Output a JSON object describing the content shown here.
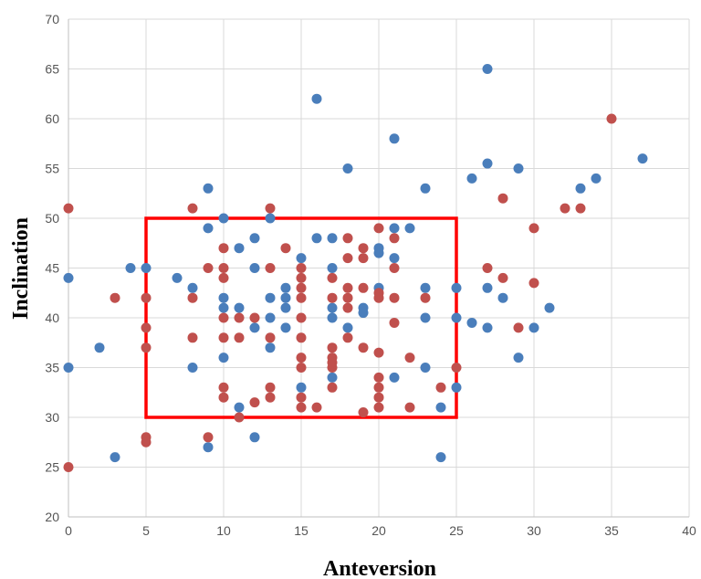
{
  "chart_data": {
    "type": "scatter",
    "title": "",
    "xlabel": "Anteversion",
    "ylabel": "Inclination",
    "xlim": [
      0,
      40
    ],
    "ylim": [
      20,
      70
    ],
    "xticks": [
      0,
      5,
      10,
      15,
      20,
      25,
      30,
      35,
      40
    ],
    "yticks": [
      20,
      25,
      30,
      35,
      40,
      45,
      50,
      55,
      60,
      65,
      70
    ],
    "grid": true,
    "legend": "none",
    "safe_zone": {
      "x": [
        5,
        25
      ],
      "y": [
        30,
        50
      ],
      "color": "#ff0000"
    },
    "series": [
      {
        "color": "#4a7ebb",
        "points": [
          [
            0,
            44
          ],
          [
            0,
            35
          ],
          [
            2,
            37
          ],
          [
            3,
            26
          ],
          [
            4,
            45
          ],
          [
            5,
            45
          ],
          [
            7,
            44
          ],
          [
            8,
            43
          ],
          [
            8,
            35
          ],
          [
            9,
            53
          ],
          [
            9,
            49
          ],
          [
            9,
            27
          ],
          [
            10,
            50
          ],
          [
            10,
            42
          ],
          [
            10,
            41
          ],
          [
            10,
            36
          ],
          [
            11,
            47
          ],
          [
            11,
            41
          ],
          [
            11,
            31
          ],
          [
            12,
            48
          ],
          [
            12,
            45
          ],
          [
            12,
            39
          ],
          [
            12,
            28
          ],
          [
            13,
            50
          ],
          [
            13,
            42
          ],
          [
            13,
            40
          ],
          [
            13,
            37
          ],
          [
            14,
            43
          ],
          [
            14,
            42
          ],
          [
            14,
            41
          ],
          [
            14,
            39
          ],
          [
            15,
            46
          ],
          [
            15,
            33
          ],
          [
            16,
            62
          ],
          [
            16,
            48
          ],
          [
            17,
            48
          ],
          [
            17,
            45
          ],
          [
            17,
            41
          ],
          [
            17,
            40
          ],
          [
            17,
            34
          ],
          [
            18,
            55
          ],
          [
            18,
            39
          ],
          [
            19,
            41
          ],
          [
            19,
            40.5
          ],
          [
            20,
            47
          ],
          [
            20,
            46.5
          ],
          [
            20,
            43
          ],
          [
            21,
            58
          ],
          [
            21,
            49
          ],
          [
            21,
            46
          ],
          [
            21,
            34
          ],
          [
            22,
            49
          ],
          [
            23,
            53
          ],
          [
            23,
            43
          ],
          [
            23,
            40
          ],
          [
            23,
            35
          ],
          [
            24,
            31
          ],
          [
            24,
            26
          ],
          [
            25,
            43
          ],
          [
            25,
            40
          ],
          [
            25,
            33
          ],
          [
            26,
            54
          ],
          [
            26,
            39.5
          ],
          [
            27,
            65
          ],
          [
            27,
            55.5
          ],
          [
            27,
            43
          ],
          [
            27,
            39
          ],
          [
            28,
            42
          ],
          [
            29,
            55
          ],
          [
            29,
            36
          ],
          [
            30,
            39
          ],
          [
            31,
            41
          ],
          [
            33,
            53
          ],
          [
            34,
            54
          ],
          [
            37,
            56
          ]
        ]
      },
      {
        "color": "#c0504d",
        "points": [
          [
            0,
            51
          ],
          [
            0,
            25
          ],
          [
            3,
            42
          ],
          [
            5,
            42
          ],
          [
            5,
            39
          ],
          [
            5,
            37
          ],
          [
            5,
            28
          ],
          [
            5,
            27.5
          ],
          [
            8,
            51
          ],
          [
            8,
            42
          ],
          [
            8,
            38
          ],
          [
            9,
            45
          ],
          [
            9,
            28
          ],
          [
            10,
            47
          ],
          [
            10,
            45
          ],
          [
            10,
            44
          ],
          [
            10,
            40
          ],
          [
            10,
            38
          ],
          [
            10,
            33
          ],
          [
            10,
            32
          ],
          [
            11,
            40
          ],
          [
            11,
            38
          ],
          [
            11,
            30
          ],
          [
            12,
            40
          ],
          [
            12,
            31.5
          ],
          [
            13,
            51
          ],
          [
            13,
            45
          ],
          [
            13,
            38
          ],
          [
            13,
            33
          ],
          [
            13,
            32
          ],
          [
            14,
            47
          ],
          [
            15,
            45
          ],
          [
            15,
            44
          ],
          [
            15,
            43
          ],
          [
            15,
            42
          ],
          [
            15,
            40
          ],
          [
            15,
            38
          ],
          [
            15,
            36
          ],
          [
            15,
            35
          ],
          [
            15,
            32
          ],
          [
            15,
            31
          ],
          [
            16,
            31
          ],
          [
            17,
            44
          ],
          [
            17,
            42
          ],
          [
            17,
            37
          ],
          [
            17,
            36
          ],
          [
            17,
            35.5
          ],
          [
            17,
            35
          ],
          [
            17,
            33
          ],
          [
            18,
            48
          ],
          [
            18,
            46
          ],
          [
            18,
            43
          ],
          [
            18,
            42
          ],
          [
            18,
            41
          ],
          [
            18,
            38
          ],
          [
            19,
            47
          ],
          [
            19,
            46
          ],
          [
            19,
            43
          ],
          [
            19,
            37
          ],
          [
            19,
            30.5
          ],
          [
            20,
            49
          ],
          [
            20,
            42.5
          ],
          [
            20,
            42
          ],
          [
            20,
            36.5
          ],
          [
            20,
            34
          ],
          [
            20,
            33
          ],
          [
            20,
            32
          ],
          [
            20,
            31
          ],
          [
            21,
            48
          ],
          [
            21,
            45
          ],
          [
            21,
            42
          ],
          [
            21,
            39.5
          ],
          [
            22,
            36
          ],
          [
            22,
            31
          ],
          [
            23,
            42
          ],
          [
            24,
            33
          ],
          [
            25,
            35
          ],
          [
            27,
            45
          ],
          [
            28,
            44
          ],
          [
            28,
            52
          ],
          [
            29,
            39
          ],
          [
            30,
            49
          ],
          [
            30,
            43.5
          ],
          [
            32,
            51
          ],
          [
            33,
            51
          ],
          [
            35,
            60
          ]
        ]
      }
    ]
  }
}
